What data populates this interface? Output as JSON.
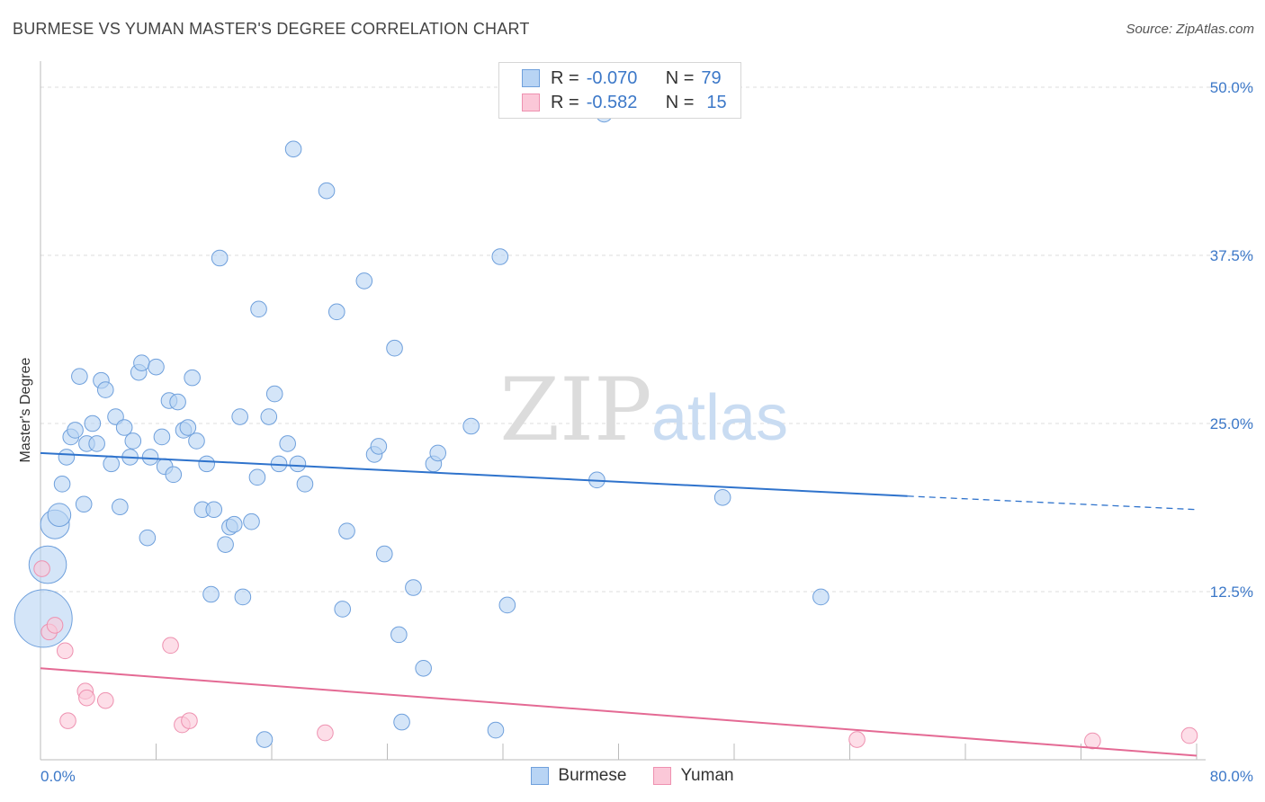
{
  "title": "BURMESE VS YUMAN MASTER'S DEGREE CORRELATION CHART",
  "source": "Source: ZipAtlas.com",
  "legend": {
    "rows": [
      {
        "r_label": "R =",
        "r_value": "-0.070",
        "n_label": "N =",
        "n_value": "79",
        "color": "#b8d4f4",
        "border": "#6fa0dc"
      },
      {
        "r_label": "R =",
        "r_value": "-0.582",
        "n_label": "N =",
        "n_value": "15",
        "color": "#fbc8d8",
        "border": "#ee91b0"
      }
    ]
  },
  "bottom_legend": [
    {
      "label": "Burmese",
      "color": "#b8d4f4",
      "border": "#6fa0dc"
    },
    {
      "label": "Yuman",
      "color": "#fbc8d8",
      "border": "#ee91b0"
    }
  ],
  "watermark": {
    "zip": "ZIP",
    "atlas": "atlas"
  },
  "colors": {
    "blue_line": "#2f73cc",
    "pink_line": "#e46a94",
    "axis_text": "#3c78c8",
    "grid": "#dddddd"
  },
  "chart_data": {
    "type": "scatter",
    "title": "BURMESE VS YUMAN MASTER'S DEGREE CORRELATION CHART",
    "xlabel": "",
    "ylabel": "Master's Degree",
    "xlim": [
      0,
      80
    ],
    "ylim": [
      0,
      50
    ],
    "x_tick_labels": [
      "0.0%",
      "80.0%"
    ],
    "y_ticks": [
      12.5,
      25.0,
      37.5,
      50.0
    ],
    "y_tick_labels": [
      "12.5%",
      "25.0%",
      "37.5%",
      "50.0%"
    ],
    "grid": true,
    "legend_position": "top-center",
    "series": [
      {
        "name": "Burmese",
        "color": "#b8d4f4",
        "trend": {
          "x_start": 0,
          "y_start": 22.8,
          "x_solid_end": 60,
          "y_solid_end": 19.6,
          "x_end": 80,
          "y_end": 18.6
        },
        "points": [
          [
            0.5,
            14.5,
            2.6
          ],
          [
            0.2,
            10.5,
            4.0
          ],
          [
            1.0,
            17.5,
            2.0
          ],
          [
            1.3,
            18.2,
            1.6
          ],
          [
            1.5,
            20.5,
            1.1
          ],
          [
            1.8,
            22.5,
            1.1
          ],
          [
            2.1,
            24.0,
            1.1
          ],
          [
            2.4,
            24.5,
            1.1
          ],
          [
            2.7,
            28.5,
            1.1
          ],
          [
            3.0,
            19.0,
            1.1
          ],
          [
            3.2,
            23.5,
            1.1
          ],
          [
            3.6,
            25.0,
            1.1
          ],
          [
            3.9,
            23.5,
            1.1
          ],
          [
            4.2,
            28.2,
            1.1
          ],
          [
            4.5,
            27.5,
            1.1
          ],
          [
            4.9,
            22.0,
            1.1
          ],
          [
            5.2,
            25.5,
            1.1
          ],
          [
            5.5,
            18.8,
            1.1
          ],
          [
            5.8,
            24.7,
            1.1
          ],
          [
            6.2,
            22.5,
            1.1
          ],
          [
            6.4,
            23.7,
            1.1
          ],
          [
            6.8,
            28.8,
            1.1
          ],
          [
            7.0,
            29.5,
            1.1
          ],
          [
            7.4,
            16.5,
            1.1
          ],
          [
            7.6,
            22.5,
            1.1
          ],
          [
            8.0,
            29.2,
            1.1
          ],
          [
            8.4,
            24.0,
            1.1
          ],
          [
            8.6,
            21.8,
            1.1
          ],
          [
            8.9,
            26.7,
            1.1
          ],
          [
            9.2,
            21.2,
            1.1
          ],
          [
            9.5,
            26.6,
            1.1
          ],
          [
            9.9,
            24.5,
            1.1
          ],
          [
            10.2,
            24.7,
            1.1
          ],
          [
            10.5,
            28.4,
            1.1
          ],
          [
            10.8,
            23.7,
            1.1
          ],
          [
            11.2,
            18.6,
            1.1
          ],
          [
            11.5,
            22.0,
            1.1
          ],
          [
            11.8,
            12.3,
            1.1
          ],
          [
            12.0,
            18.6,
            1.1
          ],
          [
            12.4,
            37.3,
            1.1
          ],
          [
            12.8,
            16.0,
            1.1
          ],
          [
            13.1,
            17.3,
            1.1
          ],
          [
            13.4,
            17.5,
            1.1
          ],
          [
            13.8,
            25.5,
            1.1
          ],
          [
            14.0,
            12.1,
            1.1
          ],
          [
            14.6,
            17.7,
            1.1
          ],
          [
            15.0,
            21.0,
            1.1
          ],
          [
            15.1,
            33.5,
            1.1
          ],
          [
            15.5,
            1.5,
            1.1
          ],
          [
            15.8,
            25.5,
            1.1
          ],
          [
            16.2,
            27.2,
            1.1
          ],
          [
            16.5,
            22.0,
            1.1
          ],
          [
            17.1,
            23.5,
            1.1
          ],
          [
            17.5,
            45.4,
            1.1
          ],
          [
            17.8,
            22.0,
            1.1
          ],
          [
            18.3,
            20.5,
            1.1
          ],
          [
            19.8,
            42.3,
            1.1
          ],
          [
            20.5,
            33.3,
            1.1
          ],
          [
            20.9,
            11.2,
            1.1
          ],
          [
            21.2,
            17.0,
            1.1
          ],
          [
            22.4,
            35.6,
            1.1
          ],
          [
            23.1,
            22.7,
            1.1
          ],
          [
            23.4,
            23.3,
            1.1
          ],
          [
            23.8,
            15.3,
            1.1
          ],
          [
            24.5,
            30.6,
            1.1
          ],
          [
            24.8,
            9.3,
            1.1
          ],
          [
            25.0,
            2.8,
            1.1
          ],
          [
            25.8,
            12.8,
            1.1
          ],
          [
            26.5,
            6.8,
            1.1
          ],
          [
            27.2,
            22.0,
            1.1
          ],
          [
            27.5,
            22.8,
            1.1
          ],
          [
            29.8,
            24.8,
            1.1
          ],
          [
            31.5,
            2.2,
            1.1
          ],
          [
            31.8,
            37.4,
            1.1
          ],
          [
            32.3,
            11.5,
            1.1
          ],
          [
            38.5,
            20.8,
            1.1
          ],
          [
            47.2,
            19.5,
            1.1
          ],
          [
            54.0,
            12.1,
            1.1
          ],
          [
            39.0,
            48.0,
            1.1
          ]
        ]
      },
      {
        "name": "Yuman",
        "color": "#fbc8d8",
        "trend": {
          "x_start": 0,
          "y_start": 6.8,
          "x_end": 80,
          "y_end": 0.3
        },
        "points": [
          [
            0.1,
            14.2,
            1.1
          ],
          [
            0.6,
            9.5,
            1.1
          ],
          [
            1.0,
            10.0,
            1.1
          ],
          [
            1.7,
            8.1,
            1.1
          ],
          [
            1.9,
            2.9,
            1.1
          ],
          [
            3.1,
            5.1,
            1.1
          ],
          [
            3.2,
            4.6,
            1.1
          ],
          [
            4.5,
            4.4,
            1.1
          ],
          [
            9.0,
            8.5,
            1.1
          ],
          [
            9.8,
            2.6,
            1.1
          ],
          [
            10.3,
            2.9,
            1.1
          ],
          [
            19.7,
            2.0,
            1.1
          ],
          [
            56.5,
            1.5,
            1.1
          ],
          [
            72.8,
            1.4,
            1.1
          ],
          [
            79.5,
            1.8,
            1.1
          ]
        ]
      }
    ]
  }
}
